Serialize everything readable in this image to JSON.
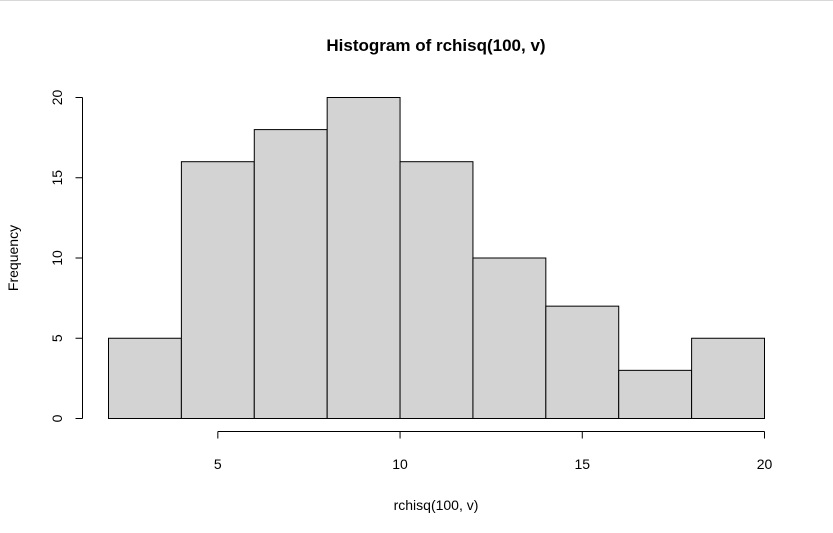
{
  "chart_data": {
    "type": "bar",
    "title": "Histogram of rchisq(100, v)",
    "xlabel": "rchisq(100, v)",
    "ylabel": "Frequency",
    "bins": [
      {
        "x0": 2,
        "x1": 4,
        "count": 5
      },
      {
        "x0": 4,
        "x1": 6,
        "count": 16
      },
      {
        "x0": 6,
        "x1": 8,
        "count": 18
      },
      {
        "x0": 8,
        "x1": 10,
        "count": 20
      },
      {
        "x0": 10,
        "x1": 12,
        "count": 16
      },
      {
        "x0": 12,
        "x1": 14,
        "count": 10
      },
      {
        "x0": 14,
        "x1": 16,
        "count": 7
      },
      {
        "x0": 16,
        "x1": 18,
        "count": 3
      },
      {
        "x0": 18,
        "x1": 20,
        "count": 5
      }
    ],
    "xticks": [
      5,
      10,
      15,
      20
    ],
    "yticks": [
      0,
      5,
      10,
      15,
      20
    ],
    "xlim": [
      2,
      20
    ],
    "ylim": [
      0,
      20
    ],
    "bar_fill": "#d3d3d3",
    "grid": false
  }
}
